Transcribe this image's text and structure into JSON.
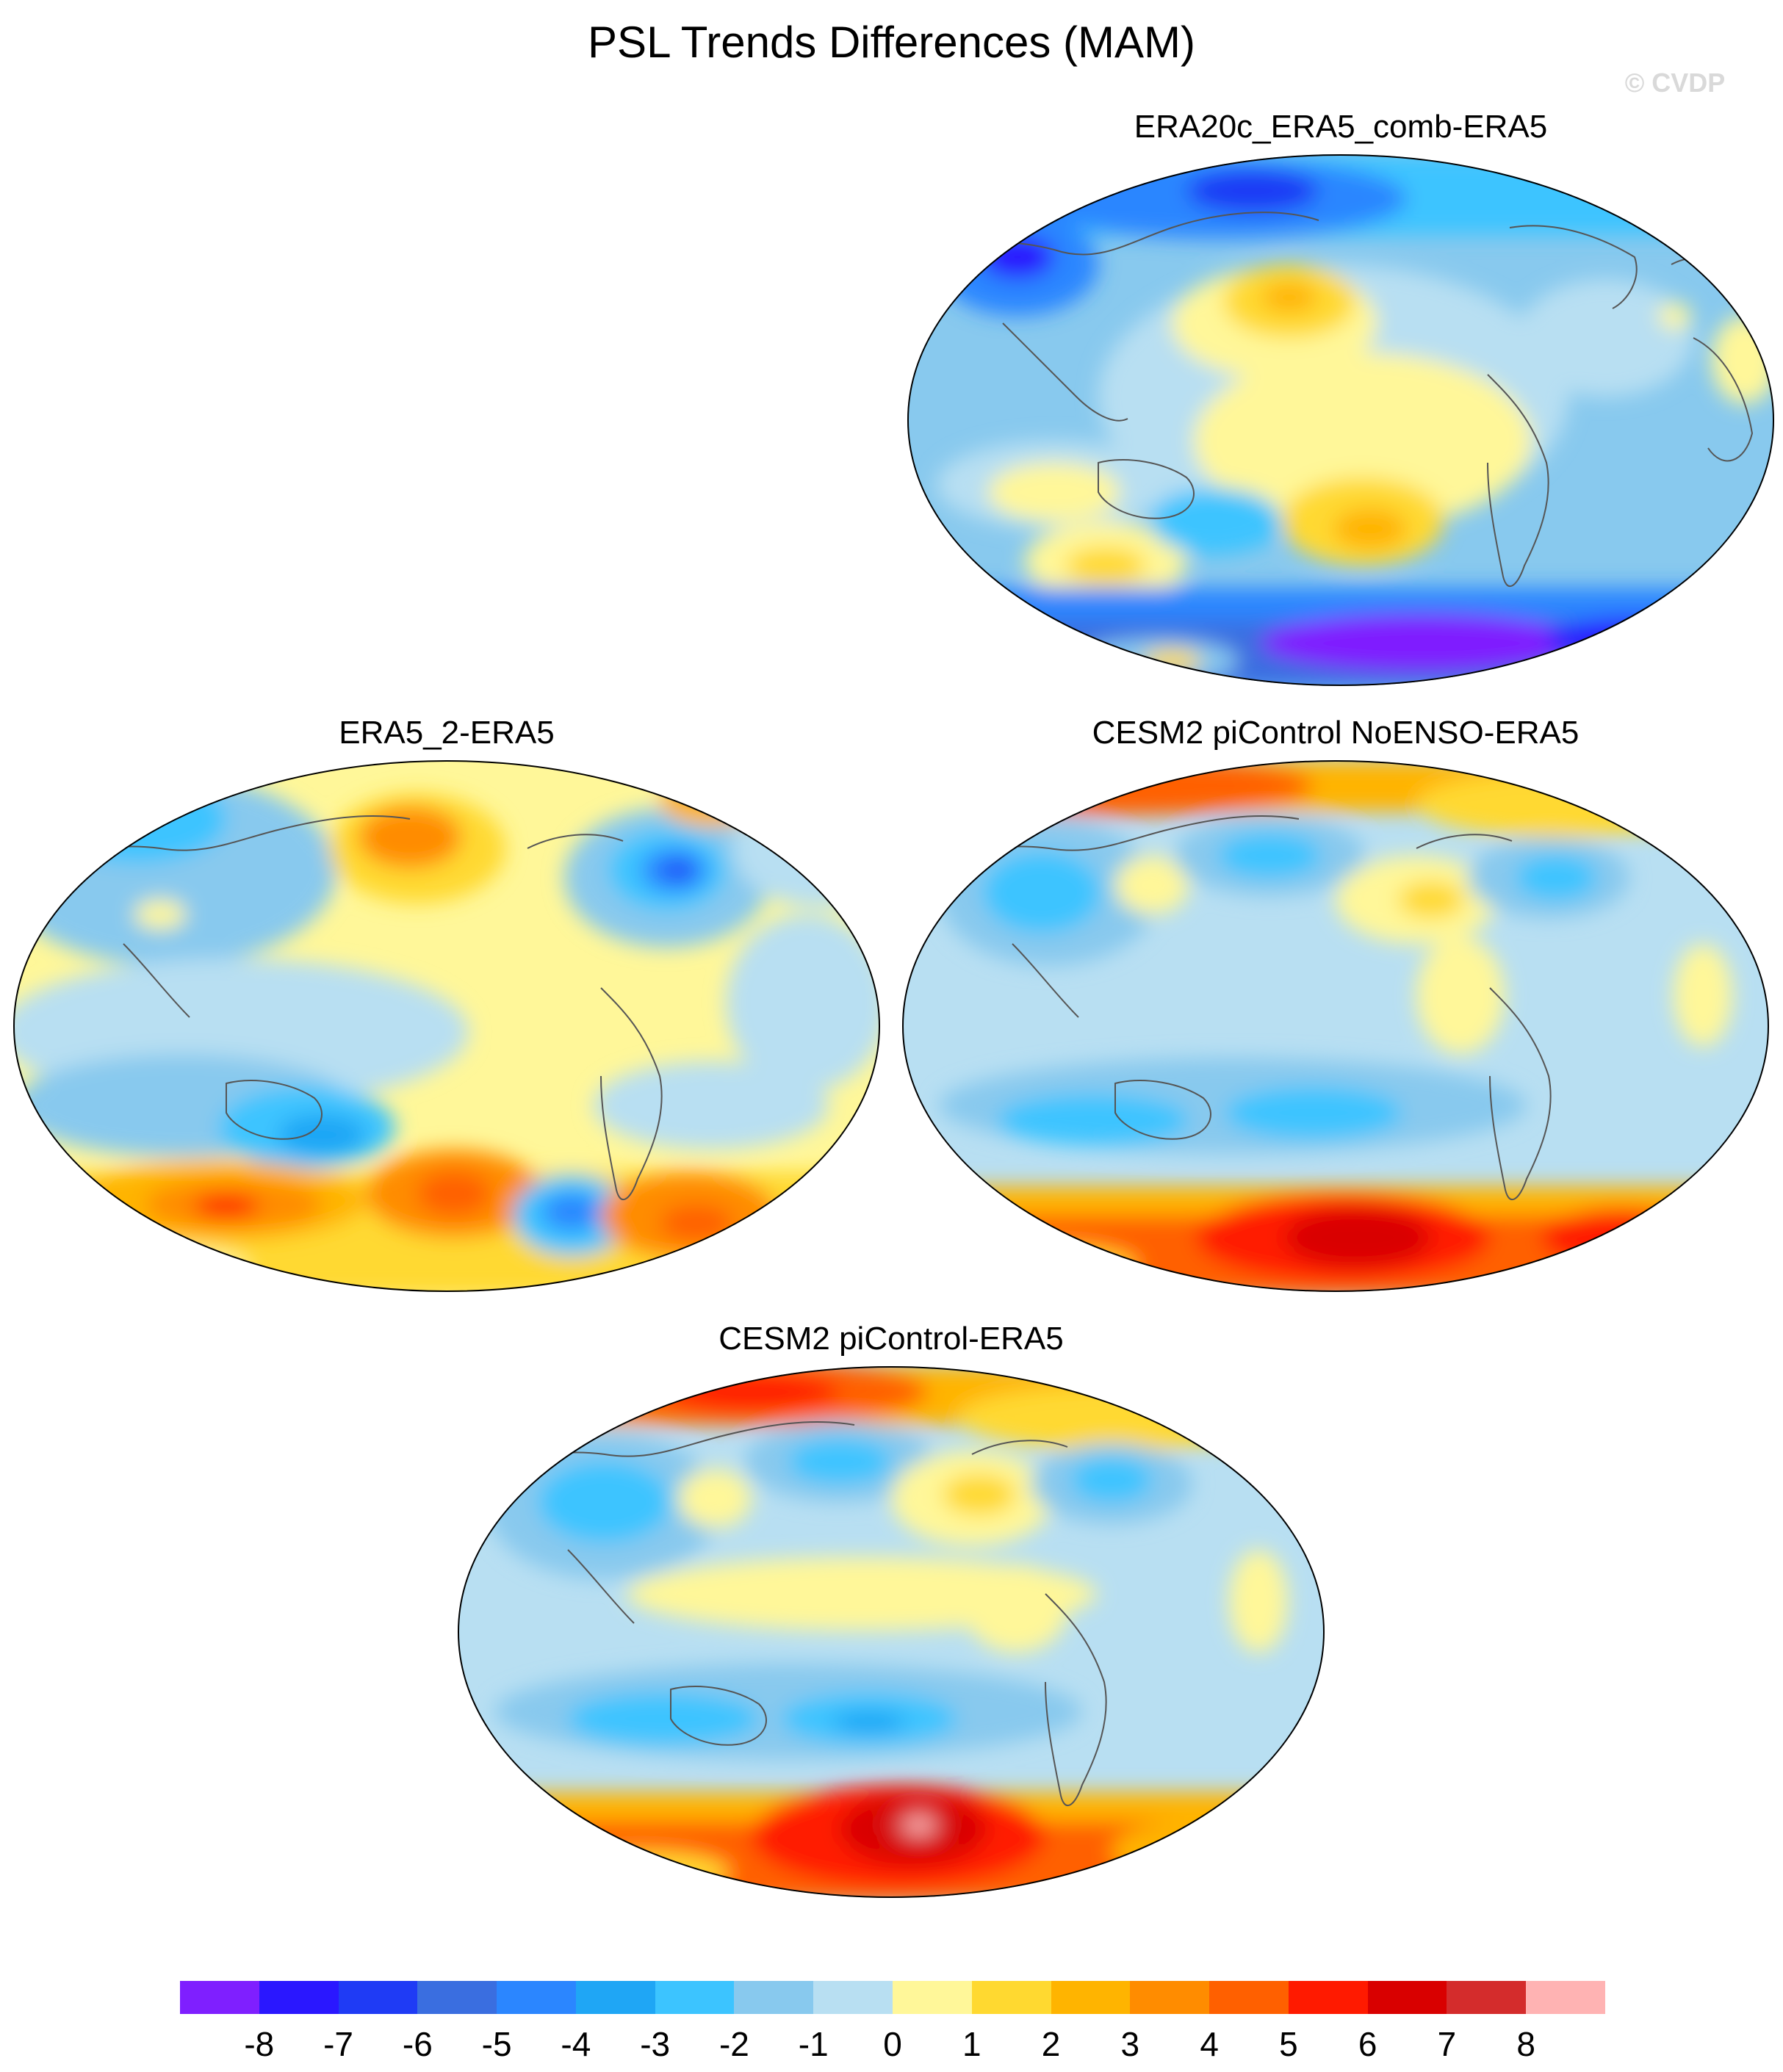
{
  "title": "PSL Trends Differences (MAM)",
  "watermark": "© CVDP",
  "panels": [
    {
      "id": "p1",
      "title": "ERA20c_ERA5_comb-ERA5"
    },
    {
      "id": "p2",
      "title": "ERA5_2-ERA5"
    },
    {
      "id": "p3",
      "title": "CESM2 piControl NoENSO-ERA5"
    },
    {
      "id": "p4",
      "title": "CESM2 piControl-ERA5"
    }
  ],
  "colorbar": {
    "colors": [
      "#7f1fff",
      "#2a17ff",
      "#1f3bf5",
      "#3a6ee0",
      "#2b86ff",
      "#1fa6f5",
      "#3cc4ff",
      "#88c9ee",
      "#b8dff2",
      "#fff799",
      "#ffd930",
      "#ffb400",
      "#ff8c00",
      "#ff6000",
      "#ff1a00",
      "#d90000",
      "#d42c2c",
      "#ffb3b3"
    ],
    "labels": [
      "-8",
      "-7",
      "-6",
      "-5",
      "-4",
      "-3",
      "-2",
      "-1",
      "0",
      "1",
      "2",
      "3",
      "4",
      "5",
      "6",
      "7",
      "8"
    ]
  }
}
